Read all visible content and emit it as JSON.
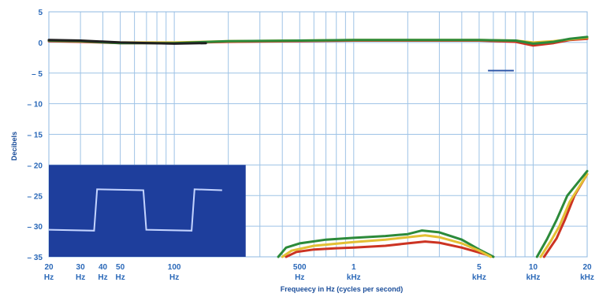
{
  "chart_data": {
    "type": "line",
    "title": "",
    "xlabel": "Frequeecy in Hz (cycles per second)",
    "ylabel": "Decibels",
    "x_scale": "log",
    "xlim": [
      20,
      20000
    ],
    "ylim": [
      -35,
      5
    ],
    "grid": true,
    "y_ticks": [
      {
        "value": 5,
        "label": "5"
      },
      {
        "value": 0,
        "label": "0"
      },
      {
        "value": -5,
        "label": "– 5"
      },
      {
        "value": -10,
        "label": "– 10"
      },
      {
        "value": -15,
        "label": "– 15"
      },
      {
        "value": -20,
        "label": "– 20"
      },
      {
        "value": -25,
        "label": "– 25"
      },
      {
        "value": -30,
        "label": "– 30"
      },
      {
        "value": -35,
        "label": "– 35"
      }
    ],
    "x_ticks": [
      {
        "value": 20,
        "line1": "20",
        "line2": "Hz"
      },
      {
        "value": 30,
        "line1": "30",
        "line2": "Hz"
      },
      {
        "value": 40,
        "line1": "40",
        "line2": "Hz"
      },
      {
        "value": 50,
        "line1": "50",
        "line2": "Hz"
      },
      {
        "value": 100,
        "line1": "100",
        "line2": "Hz"
      },
      {
        "value": 500,
        "line1": "500",
        "line2": "Hz"
      },
      {
        "value": 1000,
        "line1": "1",
        "line2": "kHz"
      },
      {
        "value": 5000,
        "line1": "5",
        "line2": "kHz"
      },
      {
        "value": 10000,
        "line1": "10",
        "line2": "kHz"
      },
      {
        "value": 20000,
        "line1": "20",
        "line2": "kHz"
      }
    ],
    "grid_x": [
      20,
      30,
      40,
      50,
      60,
      70,
      80,
      90,
      100,
      200,
      300,
      400,
      500,
      600,
      700,
      800,
      900,
      1000,
      2000,
      3000,
      4000,
      5000,
      6000,
      7000,
      8000,
      9000,
      10000,
      20000
    ],
    "grid_y": [
      5,
      0,
      -5,
      -10,
      -15,
      -20,
      -25,
      -30,
      -35
    ],
    "colors": {
      "grid": "#9ec3e6",
      "frame": "#8fb8e0",
      "inset_bg": "#1e3e9c",
      "inset_trace": "#c4d4ff",
      "marker": "#2d56a8"
    },
    "series": [
      {
        "color": "#cc3322",
        "points": [
          [
            20,
            0.2
          ],
          [
            30,
            0.1
          ],
          [
            50,
            -0.1
          ],
          [
            100,
            -0.1
          ],
          [
            200,
            0.1
          ],
          [
            500,
            0.2
          ],
          [
            1000,
            0.3
          ],
          [
            2000,
            0.3
          ],
          [
            5000,
            0.3
          ],
          [
            8000,
            0.1
          ],
          [
            10000,
            -0.5
          ],
          [
            13000,
            -0.1
          ],
          [
            16000,
            0.4
          ],
          [
            20000,
            0.6
          ]
        ]
      },
      {
        "color": "#e3c033",
        "points": [
          [
            20,
            0.3
          ],
          [
            30,
            0.2
          ],
          [
            50,
            0.0
          ],
          [
            100,
            0.0
          ],
          [
            200,
            0.2
          ],
          [
            500,
            0.3
          ],
          [
            1000,
            0.4
          ],
          [
            2000,
            0.4
          ],
          [
            5000,
            0.4
          ],
          [
            8000,
            0.3
          ],
          [
            10000,
            0.0
          ],
          [
            13000,
            0.2
          ],
          [
            16000,
            0.5
          ],
          [
            20000,
            0.8
          ]
        ]
      },
      {
        "color": "#2c8a3a",
        "points": [
          [
            20,
            0.3
          ],
          [
            30,
            0.2
          ],
          [
            50,
            -0.1
          ],
          [
            100,
            -0.1
          ],
          [
            200,
            0.2
          ],
          [
            500,
            0.3
          ],
          [
            1000,
            0.4
          ],
          [
            2000,
            0.4
          ],
          [
            5000,
            0.4
          ],
          [
            8000,
            0.3
          ],
          [
            10000,
            -0.2
          ],
          [
            13000,
            0.1
          ],
          [
            16000,
            0.6
          ],
          [
            20000,
            0.9
          ]
        ]
      },
      {
        "color": "#1f1f1f",
        "points": [
          [
            20,
            0.4
          ],
          [
            30,
            0.3
          ],
          [
            50,
            0.0
          ],
          [
            100,
            -0.2
          ],
          [
            150,
            -0.1
          ]
        ]
      },
      {
        "color": "#cc3322",
        "points": [
          [
            420,
            -35
          ],
          [
            480,
            -34.2
          ],
          [
            600,
            -33.8
          ],
          [
            800,
            -33.6
          ],
          [
            1000,
            -33.5
          ],
          [
            1500,
            -33.2
          ],
          [
            2000,
            -32.8
          ],
          [
            2500,
            -32.5
          ],
          [
            3000,
            -32.7
          ],
          [
            4000,
            -33.5
          ],
          [
            5000,
            -34.3
          ],
          [
            6000,
            -35
          ]
        ]
      },
      {
        "color": "#2c8a3a",
        "points": [
          [
            380,
            -35
          ],
          [
            420,
            -33.5
          ],
          [
            500,
            -32.8
          ],
          [
            700,
            -32.2
          ],
          [
            1000,
            -31.9
          ],
          [
            1500,
            -31.6
          ],
          [
            2000,
            -31.3
          ],
          [
            2400,
            -30.7
          ],
          [
            3000,
            -31.0
          ],
          [
            4000,
            -32.2
          ],
          [
            5000,
            -33.8
          ],
          [
            6000,
            -35
          ]
        ]
      },
      {
        "color": "#e3c033",
        "points": [
          [
            400,
            -35
          ],
          [
            450,
            -34.0
          ],
          [
            600,
            -33.2
          ],
          [
            1000,
            -32.6
          ],
          [
            1500,
            -32.2
          ],
          [
            2000,
            -31.8
          ],
          [
            2500,
            -31.5
          ],
          [
            3000,
            -31.8
          ],
          [
            4000,
            -32.8
          ],
          [
            5000,
            -34.0
          ],
          [
            5800,
            -35
          ]
        ]
      },
      {
        "color": "#cc3322",
        "points": [
          [
            11500,
            -35
          ],
          [
            13500,
            -32
          ],
          [
            15000,
            -29
          ],
          [
            17000,
            -25
          ],
          [
            20000,
            -21.5
          ]
        ]
      },
      {
        "color": "#e3c033",
        "points": [
          [
            11000,
            -35
          ],
          [
            12500,
            -32.5
          ],
          [
            14000,
            -30
          ],
          [
            16000,
            -26
          ],
          [
            20000,
            -21.5
          ]
        ]
      },
      {
        "color": "#2c8a3a",
        "points": [
          [
            10500,
            -35
          ],
          [
            12000,
            -32
          ],
          [
            13500,
            -29
          ],
          [
            15500,
            -25
          ],
          [
            20000,
            -21
          ]
        ]
      }
    ],
    "marker": {
      "x1": 5600,
      "x2": 7800,
      "y": -4.6
    },
    "inset": {
      "description": "oscilloscope square wave",
      "x1": 20,
      "x2": 250,
      "y1": -20,
      "y2": -35
    }
  }
}
